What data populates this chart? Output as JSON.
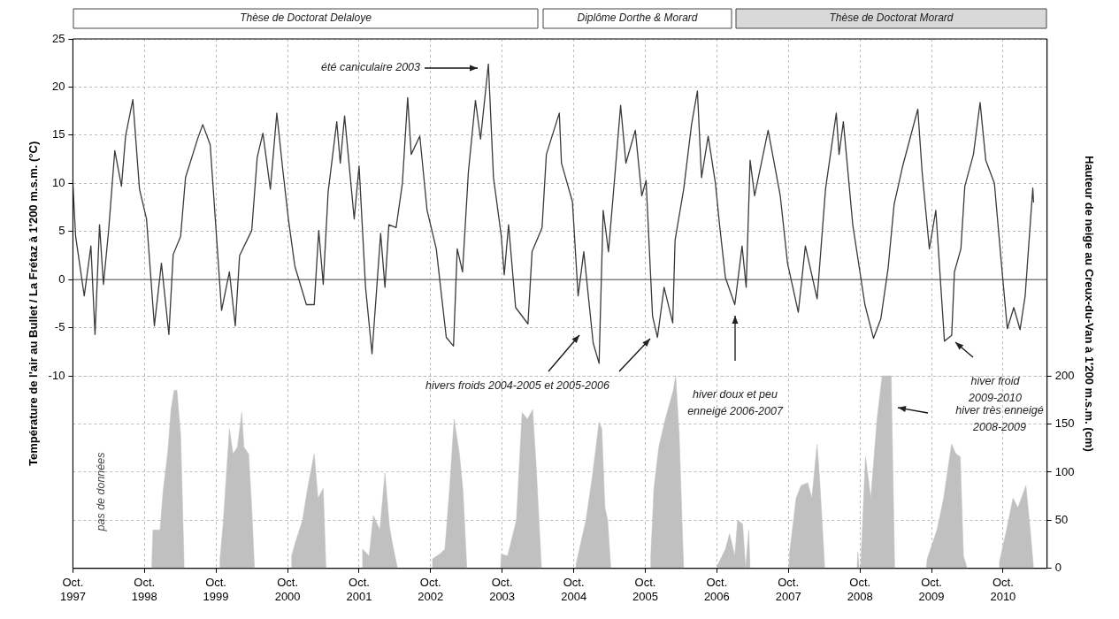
{
  "chart_data": {
    "type": "line",
    "ylabel": "Température de l'air au Bullet / La Frétaz à 1'200 m.s.m. (°C)",
    "y2label": "Hauteur de neige au Creux-du-Van à 1'200 m.s.m. (cm)",
    "xlim": [
      "1997-10-01",
      "2011-05-14"
    ],
    "xticks": [
      {
        "value": "1997-10",
        "label": "Oct. 1997"
      },
      {
        "value": "1998-10",
        "label": "Oct. 1998"
      },
      {
        "value": "1999-10",
        "label": "Oct. 1999"
      },
      {
        "value": "2000-10",
        "label": "Oct. 2000"
      },
      {
        "value": "2001-10",
        "label": "Oct. 2001"
      },
      {
        "value": "2002-10",
        "label": "Oct. 2002"
      },
      {
        "value": "2003-10",
        "label": "Oct. 2003"
      },
      {
        "value": "2004-10",
        "label": "Oct. 2004"
      },
      {
        "value": "2005-10",
        "label": "Oct. 2005"
      },
      {
        "value": "2006-10",
        "label": "Oct. 2006"
      },
      {
        "value": "2007-10",
        "label": "Oct. 2007"
      },
      {
        "value": "2008-10",
        "label": "Oct. 2008"
      },
      {
        "value": "2009-10",
        "label": "Oct. 2009"
      },
      {
        "value": "2010-10",
        "label": "Oct. 2010"
      }
    ],
    "ylim": [
      -30,
      25
    ],
    "yticks": [
      -10,
      -5,
      0,
      5,
      10,
      15,
      20,
      25
    ],
    "y2lim": [
      0,
      550
    ],
    "y2ticks": [
      0,
      50,
      100,
      150,
      200
    ],
    "grid": true,
    "ref_lines": [
      {
        "axis": "y",
        "value": 0,
        "color": "#808080"
      }
    ],
    "annotations": [
      "Thèse de Doctorat Delaloye",
      "Diplôme Dorthe & Morard",
      "Thèse de Doctorat Morard",
      "été caniculaire 2003",
      "hivers froids 2004-2005 et 2005-2006",
      "hiver doux et peu\nenneigé 2006-2007",
      "hiver froid\n2009-2010",
      "hiver très enneigé\n2008-2009",
      "pas de données"
    ],
    "series": [
      {
        "type": "area",
        "axis": "y2",
        "color": "#c0c0c0",
        "x": [
          "1998-11-07",
          "1998-11-14",
          "1998-12-20",
          "1999-01-04",
          "1999-01-29",
          "1999-02-14",
          "1999-03-02",
          "1999-03-16",
          "1999-04-04",
          "1999-04-15",
          "1999-04-22",
          "1999-10-19",
          "1999-10-22",
          "1999-11-07",
          "1999-12-09",
          "1999-12-27",
          "2000-01-19",
          "2000-02-10",
          "2000-02-21",
          "2000-03-16",
          "2000-04-01",
          "2000-04-15",
          "2000-10-19",
          "2000-10-22",
          "2000-11-07",
          "2000-12-16",
          "2001-01-11",
          "2001-02-14",
          "2001-03-05",
          "2001-04-01",
          "2001-04-15",
          "2001-10-15",
          "2001-10-19",
          "2001-11-21",
          "2001-12-13",
          "2002-01-15",
          "2002-02-10",
          "2002-03-05",
          "2002-03-20",
          "2002-04-15",
          "2002-10-08",
          "2002-10-11",
          "2002-11-17",
          "2002-12-13",
          "2003-01-08",
          "2003-01-29",
          "2003-02-25",
          "2003-03-16",
          "2003-04-04",
          "2003-09-23",
          "2003-09-27",
          "2003-10-29",
          "2003-12-13",
          "2004-01-11",
          "2004-02-07",
          "2004-03-05",
          "2004-03-23",
          "2004-04-19",
          "2004-10-11",
          "2004-10-15",
          "2004-12-02",
          "2005-01-04",
          "2005-02-07",
          "2005-02-21",
          "2005-03-09",
          "2005-03-23",
          "2005-04-08",
          "2005-10-26",
          "2005-10-29",
          "2005-11-14",
          "2005-12-09",
          "2006-01-11",
          "2006-02-03",
          "2006-02-21",
          "2006-03-05",
          "2006-03-23",
          "2006-04-08",
          "2006-04-15",
          "2006-10-01",
          "2006-10-04",
          "2006-11-14",
          "2006-12-05",
          "2007-01-01",
          "2007-01-15",
          "2007-02-10",
          "2007-02-25",
          "2007-03-13",
          "2007-03-20",
          "2007-10-04",
          "2007-10-08",
          "2007-11-10",
          "2007-12-05",
          "2008-01-08",
          "2008-01-29",
          "2008-02-25",
          "2008-03-09",
          "2008-04-04",
          "2008-09-16",
          "2008-09-20",
          "2008-09-27",
          "2008-10-04",
          "2008-10-29",
          "2008-11-25",
          "2008-12-27",
          "2009-01-22",
          "2009-02-14",
          "2009-03-09",
          "2009-03-27",
          "2009-09-05",
          "2009-09-09",
          "2009-10-29",
          "2009-12-02",
          "2010-01-11",
          "2010-02-03",
          "2010-02-25",
          "2010-03-13",
          "2010-04-01",
          "2010-09-09",
          "2010-09-13",
          "2010-10-19",
          "2010-11-21",
          "2010-12-16",
          "2011-01-26",
          "2011-02-17",
          "2011-03-06"
        ],
        "values": [
          0,
          40,
          40,
          79,
          122,
          165,
          185,
          185,
          139,
          56,
          0,
          0,
          10,
          46,
          145,
          119,
          126,
          162,
          126,
          119,
          63,
          0,
          0,
          13,
          25,
          50,
          83,
          119,
          73,
          83,
          0,
          0,
          20,
          13,
          55,
          40,
          99,
          43,
          26,
          0,
          0,
          10,
          15,
          20,
          89,
          155,
          119,
          79,
          0,
          0,
          15,
          13,
          50,
          162,
          155,
          165,
          106,
          0,
          0,
          7,
          50,
          96,
          152,
          145,
          63,
          50,
          0,
          0,
          13,
          83,
          126,
          155,
          172,
          185,
          200,
          139,
          40,
          0,
          0,
          3,
          20,
          36,
          13,
          50,
          46,
          0,
          40,
          0,
          0,
          17,
          73,
          86,
          89,
          73,
          129,
          93,
          0,
          0,
          17,
          0,
          0,
          116,
          73,
          155,
          200,
          200,
          200,
          0,
          0,
          10,
          40,
          73,
          129,
          119,
          116,
          13,
          0,
          0,
          7,
          40,
          73,
          63,
          86,
          40,
          0
        ]
      },
      {
        "type": "line",
        "color": "#3a3a3a",
        "x": [
          "1997-10-01",
          "1997-10-15",
          "1997-11-28",
          "1998-01-01",
          "1998-01-22",
          "1998-02-14",
          "1998-03-06",
          "1998-04-01",
          "1998-05-03",
          "1998-06-06",
          "1998-06-27",
          "1998-08-03",
          "1998-09-06",
          "1998-10-12",
          "1998-11-21",
          "1998-12-27",
          "1999-02-03",
          "1999-02-25",
          "1999-04-04",
          "1999-04-29",
          "1999-07-01",
          "1999-07-26",
          "1999-09-02",
          "1999-10-01",
          "1999-10-30",
          "1999-12-09",
          "2000-01-08",
          "2000-01-30",
          "2000-04-01",
          "2000-04-29",
          "2000-05-28",
          "2000-07-05",
          "2000-08-07",
          "2000-09-06",
          "2000-10-05",
          "2000-11-07",
          "2001-01-05",
          "2001-02-14",
          "2001-03-09",
          "2001-04-01",
          "2001-04-26",
          "2001-06-09",
          "2001-06-27",
          "2001-07-19",
          "2001-09-06",
          "2001-10-01",
          "2001-11-03",
          "2001-12-06",
          "2002-01-19",
          "2002-02-10",
          "2002-03-02",
          "2002-04-08",
          "2002-05-10",
          "2002-06-06",
          "2002-06-24",
          "2002-08-07",
          "2002-09-13",
          "2002-10-30",
          "2002-11-21",
          "2002-12-20",
          "2003-01-26",
          "2003-02-14",
          "2003-03-13",
          "2003-04-12",
          "2003-05-18",
          "2003-06-13",
          "2003-07-23",
          "2003-08-18",
          "2003-09-27",
          "2003-10-12",
          "2003-11-03",
          "2003-12-09",
          "2004-02-10",
          "2004-03-02",
          "2004-04-22",
          "2004-05-14",
          "2004-07-19",
          "2004-07-30",
          "2004-09-24",
          "2004-10-23",
          "2004-11-21",
          "2005-01-08",
          "2005-02-07",
          "2005-02-28",
          "2005-03-27",
          "2005-04-29",
          "2005-05-28",
          "2005-06-24",
          "2005-08-11",
          "2005-09-13",
          "2005-10-05",
          "2005-11-07",
          "2005-12-02",
          "2006-01-05",
          "2006-02-18",
          "2006-03-02",
          "2006-04-15",
          "2006-05-25",
          "2006-06-24",
          "2006-07-15",
          "2006-08-18",
          "2006-09-24",
          "2006-10-15",
          "2006-11-14",
          "2007-01-01",
          "2007-02-07",
          "2007-02-28",
          "2007-03-20",
          "2007-04-12",
          "2007-06-20",
          "2007-08-21",
          "2007-09-27",
          "2007-11-21",
          "2007-12-27",
          "2008-02-25",
          "2008-04-08",
          "2008-06-02",
          "2008-06-16",
          "2008-07-08",
          "2008-08-25",
          "2008-10-26",
          "2008-12-09",
          "2009-01-15",
          "2009-02-21",
          "2009-03-24",
          "2009-05-07",
          "2009-07-23",
          "2009-08-14",
          "2009-09-20",
          "2009-10-23",
          "2009-12-06",
          "2010-01-12",
          "2010-01-26",
          "2010-02-28",
          "2010-03-20",
          "2010-05-03",
          "2010-06-06",
          "2010-07-05",
          "2010-08-18",
          "2010-09-20",
          "2010-10-23",
          "2010-11-25",
          "2010-12-27",
          "2011-01-22",
          "2011-03-02",
          "2011-03-06"
        ],
        "values": [
          10,
          4.5,
          -1.7,
          3.5,
          -5.7,
          5.7,
          -0.5,
          5,
          13.4,
          9.7,
          14.9,
          18.7,
          9.4,
          6.3,
          -4.8,
          1.7,
          -5.7,
          2.6,
          4.5,
          10.6,
          14.7,
          16.1,
          14,
          5.4,
          -3.2,
          0.8,
          -4.8,
          2.5,
          5.1,
          12.7,
          15.2,
          9.4,
          17.3,
          11.5,
          6.3,
          1.4,
          -2.6,
          -2.6,
          5.1,
          -0.5,
          9.1,
          16.4,
          12.1,
          17,
          6.3,
          11.8,
          -0.8,
          -7.7,
          4.8,
          -0.8,
          5.7,
          5.4,
          10,
          18.9,
          13,
          14.9,
          7.2,
          3.2,
          -0.8,
          -6,
          -6.9,
          3.2,
          0.8,
          11.2,
          18.6,
          14.6,
          22.4,
          10.6,
          4.5,
          0.5,
          5.7,
          -2.9,
          -4.6,
          2.9,
          5.4,
          13,
          17.3,
          12.1,
          8.1,
          -1.7,
          2.9,
          -6.6,
          -8.7,
          7.2,
          2.9,
          10.9,
          18.1,
          12.1,
          15.5,
          8.7,
          10.3,
          -3.8,
          -6,
          -0.8,
          -4.5,
          4.1,
          9.4,
          16.1,
          19.6,
          10.6,
          14.9,
          10,
          5.7,
          0.2,
          -2.6,
          3.5,
          -0.8,
          12.4,
          8.7,
          15.5,
          8.7,
          1.7,
          -3.4,
          3.5,
          -2,
          9.4,
          17.3,
          13,
          16.4,
          5.7,
          -2.6,
          -6.1,
          -4.1,
          1.1,
          7.8,
          11.8,
          17.7,
          11.2,
          3.2,
          7.2,
          -6.4,
          -5.8,
          0.8,
          3.2,
          9.7,
          13,
          18.4,
          12.4,
          10,
          2.3,
          -5.1,
          -2.9,
          -5.2,
          -1.7,
          9.5,
          8
        ]
      }
    ]
  }
}
